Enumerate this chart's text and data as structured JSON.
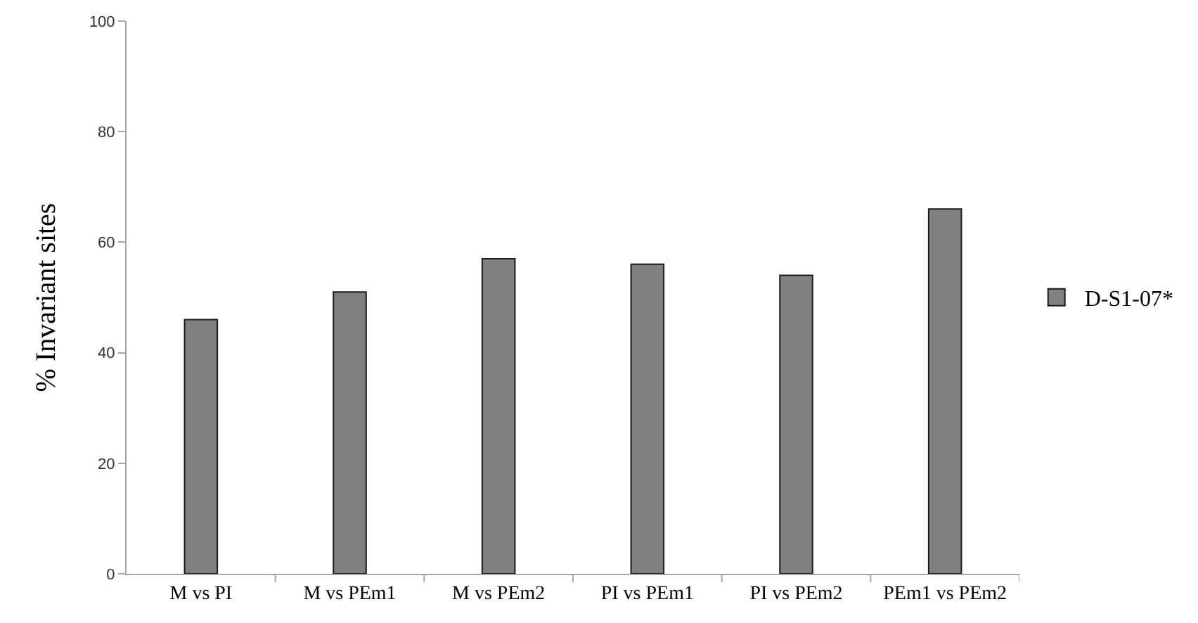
{
  "chart_data": {
    "type": "bar",
    "ylabel": "% Invariant sites",
    "categories": [
      "M vs PI",
      "M vs PEm1",
      "M vs PEm2",
      "PI vs PEm1",
      "PI vs PEm2",
      "PEm1 vs PEm2"
    ],
    "series": [
      {
        "name": "D-S1-07*",
        "color": "#808080",
        "values": [
          46,
          51,
          57,
          56,
          54,
          66
        ]
      }
    ],
    "ylim": [
      0,
      100
    ],
    "yticks": [
      0,
      20,
      40,
      60,
      80,
      100
    ],
    "grid": false,
    "legend": "right"
  }
}
